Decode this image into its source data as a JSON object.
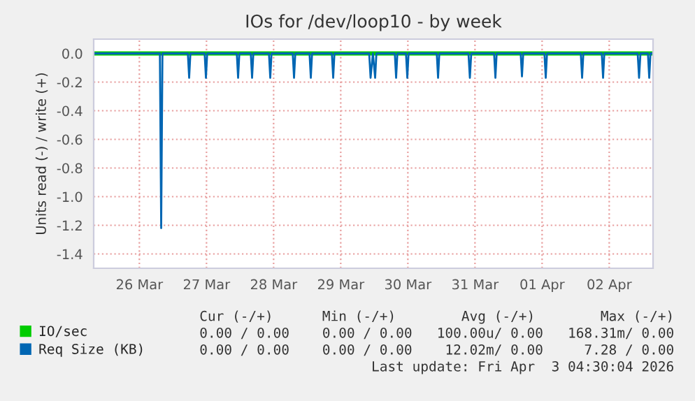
{
  "chart_data": {
    "type": "line",
    "title": "IOs for /dev/loop10 - by week",
    "ylabel": "Units read (-) / write (+)",
    "xlim": [
      "2026-03-25T19:40",
      "2026-04-03T03:40"
    ],
    "xticks": [
      {
        "value": "2026-03-26T12:00",
        "label": "26 Mar"
      },
      {
        "value": "2026-03-27T12:00",
        "label": "27 Mar"
      },
      {
        "value": "2026-03-28T12:00",
        "label": "28 Mar"
      },
      {
        "value": "2026-03-29T12:00",
        "label": "29 Mar"
      },
      {
        "value": "2026-03-30T12:00",
        "label": "30 Mar"
      },
      {
        "value": "2026-03-31T12:00",
        "label": "31 Mar"
      },
      {
        "value": "2026-04-01T12:00",
        "label": "01 Apr"
      },
      {
        "value": "2026-04-02T12:00",
        "label": "02 Apr"
      }
    ],
    "ylim": [
      -1.5,
      0.1
    ],
    "yticks": [
      {
        "value": 0,
        "label": "0.0"
      },
      -0.2,
      -0.4,
      -0.6,
      -0.8,
      {
        "value": -1,
        "label": "-1.0"
      },
      -1.2,
      -1.4
    ],
    "grid": true,
    "legend": "bottom left",
    "marker": "none",
    "line_style": "solid",
    "series": [
      {
        "name": "IO/sec",
        "color": "#00cc00",
        "x": [
          "2026-03-25T19:40",
          "2026-04-03T03:40"
        ],
        "values": [
          0,
          0
        ]
      },
      {
        "name": "Req Size (KB)",
        "color": "#0066b3",
        "x": [
          "2026-03-25T19:40",
          "2026-03-26T19:20",
          "2026-03-26T19:48",
          "2026-03-26T20:15",
          "2026-03-27T05:20",
          "2026-03-27T05:48",
          "2026-03-27T06:15",
          "2026-03-27T11:20",
          "2026-03-27T11:48",
          "2026-03-27T12:15",
          "2026-03-27T22:50",
          "2026-03-27T23:18",
          "2026-03-27T23:45",
          "2026-03-28T03:50",
          "2026-03-28T04:18",
          "2026-03-28T04:45",
          "2026-03-28T10:20",
          "2026-03-28T10:48",
          "2026-03-28T11:15",
          "2026-03-28T18:50",
          "2026-03-28T19:18",
          "2026-03-28T19:45",
          "2026-03-29T00:50",
          "2026-03-29T01:18",
          "2026-03-29T01:45",
          "2026-03-29T08:50",
          "2026-03-29T09:18",
          "2026-03-29T09:45",
          "2026-03-29T22:10",
          "2026-03-29T22:40",
          "2026-03-29T23:30",
          "2026-03-30T00:18",
          "2026-03-30T00:45",
          "2026-03-30T07:20",
          "2026-03-30T07:48",
          "2026-03-30T08:15",
          "2026-03-30T11:20",
          "2026-03-30T11:48",
          "2026-03-30T12:15",
          "2026-03-30T22:20",
          "2026-03-30T22:48",
          "2026-03-30T23:15",
          "2026-03-31T09:40",
          "2026-03-31T10:10",
          "2026-03-31T10:40",
          "2026-03-31T18:50",
          "2026-03-31T19:18",
          "2026-03-31T19:45",
          "2026-04-01T04:20",
          "2026-04-01T04:48",
          "2026-04-01T05:15",
          "2026-04-01T12:50",
          "2026-04-01T13:18",
          "2026-04-01T13:45",
          "2026-04-02T01:50",
          "2026-04-02T02:18",
          "2026-04-02T02:45",
          "2026-04-02T09:20",
          "2026-04-02T09:48",
          "2026-04-02T10:15",
          "2026-04-02T22:10",
          "2026-04-02T22:40",
          "2026-04-02T23:10",
          "2026-04-03T01:50",
          "2026-04-03T02:18",
          "2026-04-03T02:45",
          "2026-04-03T03:40"
        ],
        "values": [
          0,
          0,
          -1.22,
          0,
          0,
          -0.17,
          0,
          0,
          -0.17,
          0,
          0,
          -0.17,
          0,
          0,
          -0.17,
          0,
          0,
          -0.17,
          0,
          0,
          -0.17,
          0,
          0,
          -0.17,
          0,
          0,
          -0.17,
          0,
          0,
          -0.17,
          0,
          -0.17,
          0,
          0,
          -0.17,
          0,
          0,
          -0.17,
          0,
          0,
          -0.17,
          0,
          0,
          -0.17,
          0,
          0,
          -0.17,
          0,
          0,
          -0.16,
          0,
          0,
          -0.17,
          0,
          0,
          -0.17,
          0,
          0,
          -0.17,
          0,
          0,
          -0.17,
          0,
          0,
          -0.17,
          0,
          0
        ]
      }
    ],
    "annotations": [
      "Cur (-/+)      Min (-/+)        Avg (-/+)        Max (-/+)",
      "0.00 / 0.00    0.00 / 0.00   100.00u/ 0.00   168.31m/ 0.00",
      "0.00 / 0.00    0.00 / 0.00    12.02m/ 0.00     7.28 / 0.00",
      "Last update: Fri Apr  3 04:30:04 2026"
    ]
  }
}
